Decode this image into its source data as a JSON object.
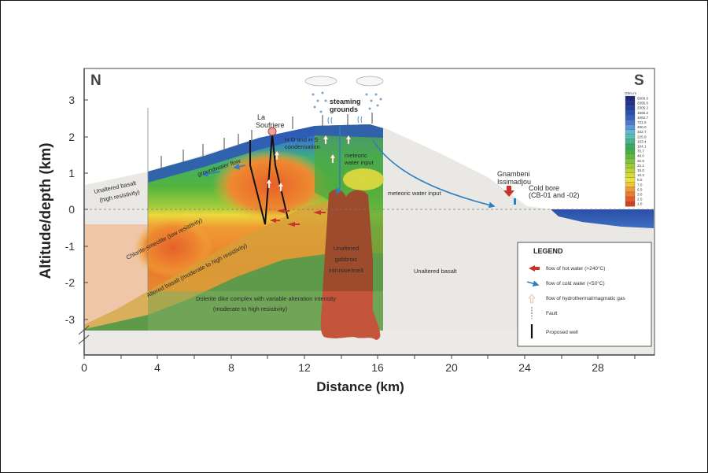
{
  "figure": {
    "title": "",
    "north_label": "N",
    "south_label": "S",
    "ylabel": "Altitude/depth (km)",
    "xlabel": "Distance (km)",
    "y_ticks": [
      "3",
      "2",
      "1",
      "0",
      "-1",
      "-2",
      "-3"
    ],
    "x_ticks": [
      "0",
      "4",
      "8",
      "12",
      "16",
      "20",
      "24",
      "28"
    ]
  },
  "annotations": {
    "la_soufriere_1": "La",
    "la_soufriere_2": "Soufriere",
    "steaming_1": "steaming",
    "steaming_2": "grounds",
    "condensation_1": "H O and H S",
    "condensation_2": "condensation",
    "meteoric_1": "meteoric",
    "meteoric_2": "water input",
    "meteoric_slope": "meteoric water input",
    "groundwater": "groundwater flow",
    "unaltered_high_1": "Unaltered basalt",
    "unaltered_high_2": "(high resistivity)",
    "chlorite": "Chlorite-smectite (low resistivity)",
    "altered_basalt": "Altered basalt (moderate to high resistivity)",
    "dolerite_1": "Dolerite dike complex with variable alteration intensity",
    "dolerite_2": "(moderate to high resistivity)",
    "gabbro_1": "Unaltered",
    "gabbro_2": "gabbroic",
    "gabbro_3": "intrusive/melt",
    "unaltered_basalt": "Unaltered basalt",
    "gnambeni_1": "Gnambeni",
    "gnambeni_2": "Issimadjou",
    "coldbore_1": "Cold bore",
    "coldbore_2": "(CB-01 and -02)"
  },
  "legend": {
    "title": "LEGEND",
    "items": [
      {
        "icon": "red-arrow-icon",
        "label": "flow of hot water (>240°C)"
      },
      {
        "icon": "blue-arrow-icon",
        "label": "flow of cold water (<50°C)"
      },
      {
        "icon": "gas-arrow-icon",
        "label": "flow of hydrothermal/magmatic gas"
      },
      {
        "icon": "fault-icon",
        "label": "Fault"
      },
      {
        "icon": "well-icon",
        "label": "Proposed well"
      }
    ]
  },
  "colorbar": {
    "unit": "Ohm.m",
    "values": [
      "5000.0",
      "3395.0",
      "2305.2",
      "1565.2",
      "1062.7",
      "721.6",
      "490.0",
      "332.7",
      "225.9",
      "153.4",
      "104.1",
      "70.7",
      "48.0",
      "32.6",
      "22.1",
      "15.0",
      "10.2",
      "8.0",
      "7.0",
      "5.0",
      "3.0",
      "2.0",
      "1.0"
    ],
    "colors": [
      "#1d2a7a",
      "#22348a",
      "#25409a",
      "#2a4fae",
      "#3560bd",
      "#4b7ad0",
      "#5a9ad8",
      "#63b6d6",
      "#55c2b0",
      "#45b589",
      "#3aa864",
      "#46ae45",
      "#5dba3c",
      "#7bc43b",
      "#9ccb39",
      "#bcd23a",
      "#d6da3b",
      "#ece23c",
      "#f1c43a",
      "#ee9b33",
      "#ea7a2c",
      "#e35a27",
      "#d43f23"
    ]
  },
  "chart_data": {
    "type": "cross-section",
    "title": "",
    "xlabel": "Distance (km)",
    "ylabel": "Altitude/depth (km)",
    "xlim": [
      0,
      31
    ],
    "ylim": [
      -3.8,
      3.8
    ],
    "x_ticks": [
      0,
      4,
      8,
      12,
      16,
      20,
      24,
      28
    ],
    "y_ticks": [
      3,
      2,
      1,
      0,
      -1,
      -2,
      -3
    ],
    "sea_level_km": 0,
    "colorbar_unit": "Ohm.m",
    "colorbar_range": [
      1.0,
      5000.0
    ],
    "units": [
      {
        "name": "Unaltered basalt (high resistivity)",
        "x_range": [
          0,
          3.5
        ]
      },
      {
        "name": "Chlorite-smectite (low resistivity)",
        "depth_range": [
          -0.3,
          -2.0
        ]
      },
      {
        "name": "Altered basalt (moderate to high resistivity)"
      },
      {
        "name": "Dolerite dike complex with variable alteration intensity (moderate to high resistivity)",
        "depth_range": [
          -2.0,
          -3.3
        ]
      },
      {
        "name": "Unaltered gabbroic intrusive/melt",
        "x_range": [
          12.5,
          16
        ]
      },
      {
        "name": "Unaltered basalt",
        "x_range": [
          16,
          31
        ]
      }
    ],
    "features": [
      {
        "name": "La Soufriere",
        "x": 10.2,
        "altitude": 2.2
      },
      {
        "name": "steaming grounds",
        "x": 14.5,
        "altitude": 2.4
      },
      {
        "name": "Gnambeni Issimadjou",
        "x": 23.3,
        "altitude": 0.3
      },
      {
        "name": "Cold bore (CB-01 and -02)",
        "x": 23.6,
        "altitude": 0.1
      }
    ]
  }
}
